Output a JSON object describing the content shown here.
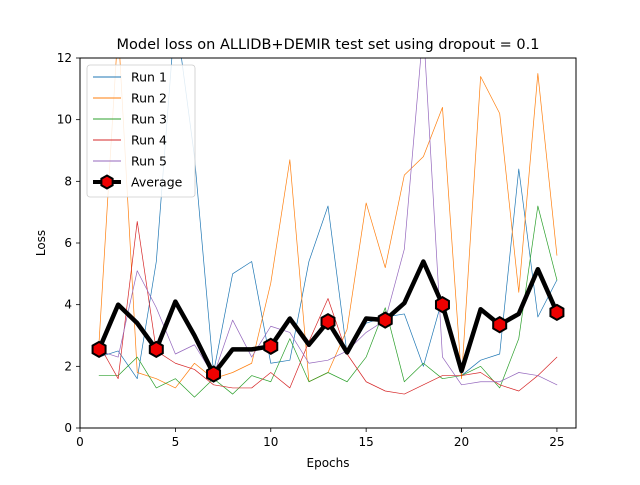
{
  "chart_data": {
    "type": "line",
    "title": "Model loss on ALLIDB+DEMIR test set using dropout = 0.1",
    "xlabel": "Epochs",
    "ylabel": "Loss",
    "xlim": [
      0,
      26
    ],
    "ylim": [
      0,
      12
    ],
    "xticks": [
      0,
      5,
      10,
      15,
      20,
      25
    ],
    "yticks": [
      0,
      2,
      4,
      6,
      8,
      10,
      12
    ],
    "grid": false,
    "legend_position": "top-left",
    "x": [
      1,
      2,
      3,
      4,
      5,
      6,
      7,
      8,
      9,
      10,
      11,
      12,
      13,
      14,
      15,
      16,
      17,
      18,
      19,
      20,
      21,
      22,
      23,
      24,
      25
    ],
    "series": [
      {
        "name": "Run 1",
        "color": "#1f77b4",
        "width": 0.7,
        "values": [
          2.3,
          2.5,
          1.6,
          5.4,
          13.5,
          8.8,
          1.8,
          5.0,
          5.4,
          2.1,
          2.2,
          5.4,
          7.2,
          2.4,
          3.4,
          3.6,
          3.7,
          2.0,
          4.2,
          1.7,
          2.2,
          2.4,
          8.4,
          3.6,
          4.8
        ]
      },
      {
        "name": "Run 2",
        "color": "#ff7f0e",
        "width": 0.7,
        "values": [
          2.8,
          13.0,
          1.8,
          1.6,
          1.3,
          2.1,
          1.6,
          1.8,
          2.1,
          4.7,
          8.7,
          1.5,
          1.8,
          3.2,
          7.3,
          5.2,
          8.2,
          8.8,
          10.4,
          1.6,
          11.4,
          10.2,
          4.4,
          11.5,
          5.6
        ]
      },
      {
        "name": "Run 3",
        "color": "#2ca02c",
        "width": 0.7,
        "values": [
          1.7,
          1.7,
          2.3,
          1.3,
          1.6,
          1.0,
          1.6,
          1.1,
          1.7,
          1.5,
          2.9,
          1.5,
          1.8,
          1.5,
          2.3,
          3.9,
          1.5,
          2.1,
          1.6,
          1.7,
          2.0,
          1.3,
          2.9,
          7.2,
          4.8
        ]
      },
      {
        "name": "Run 4",
        "color": "#d62728",
        "width": 0.7,
        "values": [
          2.7,
          1.6,
          6.7,
          2.5,
          2.1,
          1.9,
          1.4,
          1.3,
          1.3,
          1.8,
          1.3,
          2.8,
          4.2,
          2.4,
          1.5,
          1.2,
          1.1,
          1.4,
          1.7,
          1.7,
          1.8,
          1.4,
          1.2,
          1.7,
          2.3
        ]
      },
      {
        "name": "Run 5",
        "color": "#9467bd",
        "width": 0.7,
        "values": [
          2.5,
          2.3,
          5.1,
          3.9,
          2.4,
          2.7,
          1.7,
          3.5,
          2.3,
          3.3,
          3.1,
          2.1,
          2.2,
          2.5,
          3.1,
          3.5,
          5.8,
          13.0,
          2.3,
          1.4,
          1.5,
          1.5,
          1.8,
          1.7,
          1.4
        ]
      },
      {
        "name": "Average",
        "color": "#000000",
        "width": 4.5,
        "marker": "hexagon",
        "marker_color": "#ee0000",
        "marker_x": [
          1,
          4,
          7,
          10,
          13,
          16,
          19,
          22,
          25
        ],
        "values": [
          2.55,
          4.0,
          3.4,
          2.55,
          4.1,
          3.0,
          1.75,
          2.55,
          2.55,
          2.65,
          3.55,
          2.7,
          3.45,
          2.45,
          3.55,
          3.5,
          4.05,
          5.4,
          4.0,
          1.85,
          3.85,
          3.35,
          3.7,
          5.15,
          3.75
        ]
      }
    ]
  }
}
